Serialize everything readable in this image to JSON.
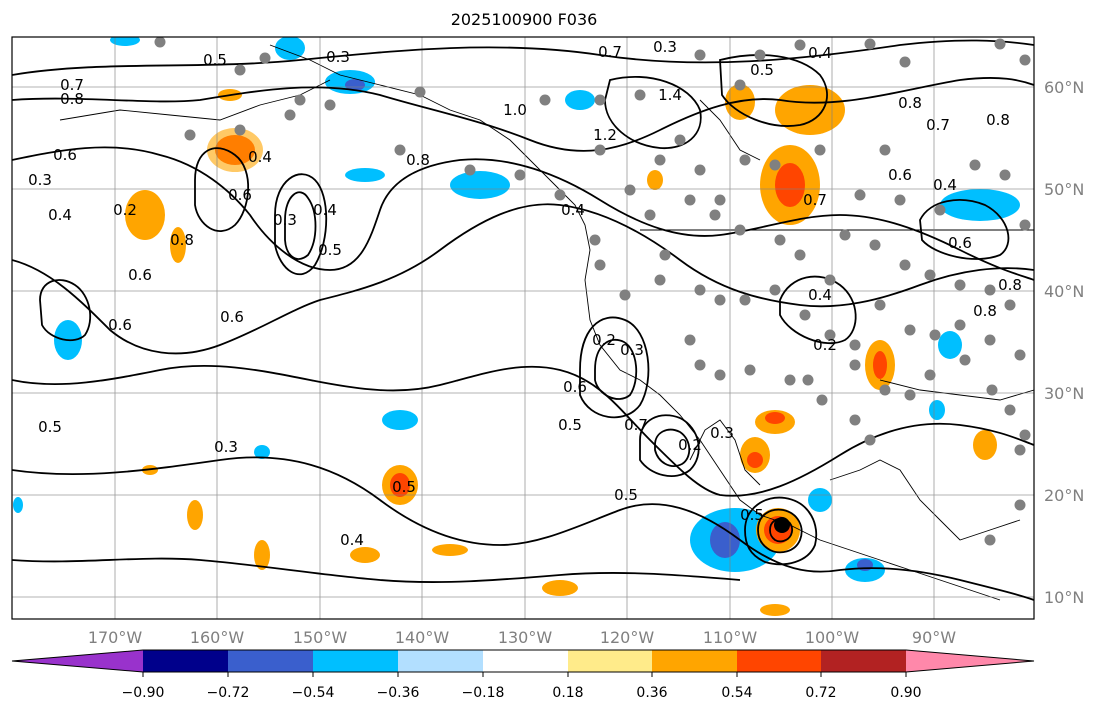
{
  "title": "2025100900 F036",
  "x_ticks": [
    "170°W",
    "160°W",
    "150°W",
    "140°W",
    "130°W",
    "120°W",
    "110°W",
    "100°W",
    "90°W"
  ],
  "y_ticks": [
    "60°N",
    "50°N",
    "40°N",
    "30°N",
    "20°N",
    "10°N"
  ],
  "colorbar": {
    "colors": [
      "#9932cc",
      "#00008b",
      "#3a5fcd",
      "#00bfff",
      "#b2dfff",
      "#ffffff",
      "#ffeb8a",
      "#ffa500",
      "#ff4500",
      "#b22222",
      "#ff88aa"
    ],
    "labels": [
      "−0.90",
      "−0.72",
      "−0.54",
      "−0.36",
      "−0.18",
      "0.18",
      "0.36",
      "0.54",
      "0.72",
      "0.90"
    ]
  },
  "contour_labels": [
    "0.3",
    "0.5",
    "0.7",
    "0.8",
    "0.6",
    "0.4",
    "0.3",
    "0.6",
    "0.8",
    "0.4",
    "0.2",
    "0.3",
    "0.4",
    "0.5",
    "0.6",
    "1.0",
    "1.2",
    "0.8",
    "0.4",
    "1.4",
    "0.3",
    "0.7",
    "0.5",
    "0.4",
    "0.8",
    "0.7",
    "0.8",
    "0.4",
    "0.6",
    "0.8",
    "0.6",
    "0.5",
    "0.3",
    "0.6",
    "0.6",
    "0.5",
    "0.7",
    "0.5",
    "0.5",
    "0.4",
    "0.5",
    "0.3",
    "0.2",
    "0.2",
    "0.3",
    "0.4",
    "0.2",
    "0.7",
    "0.8",
    "0.6"
  ],
  "map_labels": {
    "region": "eastern North Pacific and North America",
    "field": "contour field with shaded anomalies"
  }
}
